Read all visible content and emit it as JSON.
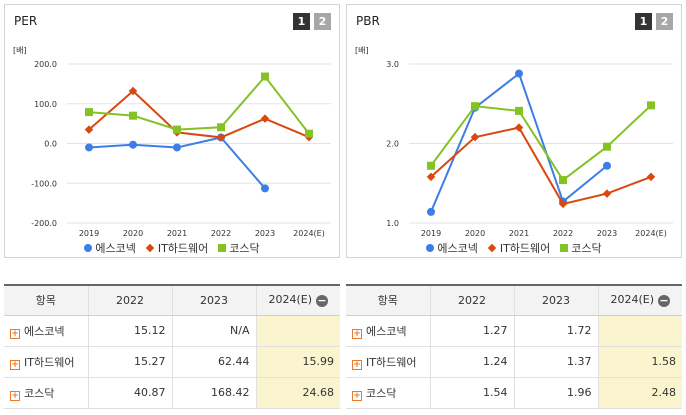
{
  "pager": {
    "page1": "1",
    "page2": "2"
  },
  "legend_names": [
    "에스코넥",
    "IT하드웨어",
    "코스닥"
  ],
  "colors": {
    "에스코넥": "#3d7ee6",
    "IT하드웨어": "#d9480f",
    "코스닥": "#84c225"
  },
  "chart_data": [
    {
      "type": "line",
      "title": "PER",
      "unit": "[배]",
      "categories": [
        "2019",
        "2020",
        "2021",
        "2022",
        "2023",
        "2024(E)"
      ],
      "ylim": [
        -200,
        200
      ],
      "yticks": [
        "200.0",
        "100.0",
        "0.0",
        "-100.0",
        "-200.0"
      ],
      "series": [
        {
          "name": "에스코넥",
          "marker": "circle",
          "values": [
            -10,
            -3,
            -10,
            15.12,
            -113,
            null
          ]
        },
        {
          "name": "IT하드웨어",
          "marker": "diamond",
          "values": [
            35,
            132,
            28,
            15.27,
            62.44,
            15.99
          ]
        },
        {
          "name": "코스닥",
          "marker": "square",
          "values": [
            79,
            70,
            35,
            40.87,
            168.42,
            24.68
          ]
        }
      ],
      "grid": true,
      "legend_position": "bottom"
    },
    {
      "type": "line",
      "title": "PBR",
      "unit": "[배]",
      "categories": [
        "2019",
        "2020",
        "2021",
        "2022",
        "2023",
        "2024(E)"
      ],
      "ylim": [
        1.0,
        3.0
      ],
      "yticks": [
        "3.0",
        "2.0",
        "1.0"
      ],
      "series": [
        {
          "name": "에스코넥",
          "marker": "circle",
          "values": [
            1.14,
            2.45,
            2.88,
            1.27,
            1.72,
            null
          ]
        },
        {
          "name": "IT하드웨어",
          "marker": "diamond",
          "values": [
            1.58,
            2.08,
            2.2,
            1.24,
            1.37,
            1.58
          ]
        },
        {
          "name": "코스닥",
          "marker": "square",
          "values": [
            1.72,
            2.47,
            2.41,
            1.54,
            1.96,
            2.48
          ]
        }
      ],
      "grid": true,
      "legend_position": "bottom"
    }
  ],
  "tables": [
    {
      "headers": [
        "항목",
        "2022",
        "2023",
        "2024(E)"
      ],
      "rows": [
        {
          "name": "에스코넥",
          "v2022": "15.12",
          "v2023": "N/A",
          "v2024": ""
        },
        {
          "name": "IT하드웨어",
          "v2022": "15.27",
          "v2023": "62.44",
          "v2024": "15.99"
        },
        {
          "name": "코스닥",
          "v2022": "40.87",
          "v2023": "168.42",
          "v2024": "24.68"
        }
      ]
    },
    {
      "headers": [
        "항목",
        "2022",
        "2023",
        "2024(E)"
      ],
      "rows": [
        {
          "name": "에스코넥",
          "v2022": "1.27",
          "v2023": "1.72",
          "v2024": ""
        },
        {
          "name": "IT하드웨어",
          "v2022": "1.24",
          "v2023": "1.37",
          "v2024": "1.58"
        },
        {
          "name": "코스닥",
          "v2022": "1.54",
          "v2023": "1.96",
          "v2024": "2.48"
        }
      ]
    }
  ]
}
